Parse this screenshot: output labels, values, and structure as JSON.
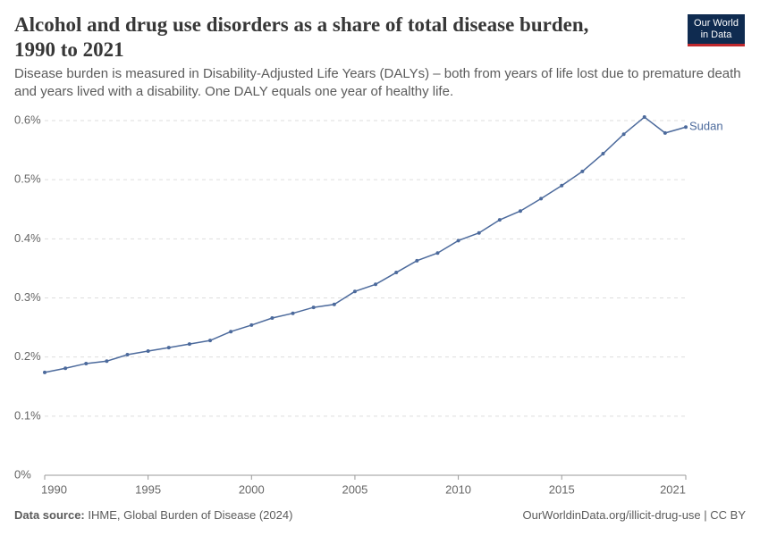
{
  "chart_data": {
    "type": "line",
    "title": "Alcohol and drug use disorders as a share of total disease burden, 1990 to 2021",
    "subtitle": "Disease burden is measured in Disability-Adjusted Life Years (DALYs) – both from years of life lost due to premature death and years lived with a disability. One DALY equals one year of healthy life.",
    "x": [
      1990,
      1991,
      1992,
      1993,
      1994,
      1995,
      1996,
      1997,
      1998,
      1999,
      2000,
      2001,
      2002,
      2003,
      2004,
      2005,
      2006,
      2007,
      2008,
      2009,
      2010,
      2011,
      2012,
      2013,
      2014,
      2015,
      2016,
      2017,
      2018,
      2019,
      2020,
      2021
    ],
    "series": [
      {
        "name": "Sudan",
        "color": "#4c6a9c",
        "values": [
          0.174,
          0.181,
          0.189,
          0.193,
          0.204,
          0.21,
          0.216,
          0.222,
          0.228,
          0.243,
          0.254,
          0.266,
          0.274,
          0.284,
          0.289,
          0.311,
          0.323,
          0.343,
          0.363,
          0.376,
          0.397,
          0.41,
          0.432,
          0.447,
          0.468,
          0.49,
          0.514,
          0.544,
          0.577,
          0.606,
          0.579,
          0.589
        ]
      }
    ],
    "xlim": [
      1990,
      2021
    ],
    "xticks": [
      1990,
      1995,
      2000,
      2005,
      2010,
      2015,
      2021
    ],
    "ylim": [
      0,
      0.6
    ],
    "yticks": [
      {
        "value": 0,
        "label": "0%"
      },
      {
        "value": 0.1,
        "label": "0.1%"
      },
      {
        "value": 0.2,
        "label": "0.2%"
      },
      {
        "value": 0.3,
        "label": "0.3%"
      },
      {
        "value": 0.4,
        "label": "0.4%"
      },
      {
        "value": 0.5,
        "label": "0.5%"
      },
      {
        "value": 0.6,
        "label": "0.6%"
      }
    ],
    "grid": true,
    "source_label": "Data source:",
    "source": "IHME, Global Burden of Disease (2024)",
    "footer_right": "OurWorldinData.org/illicit-drug-use | CC BY"
  },
  "logo": [
    "Our World",
    "in Data"
  ]
}
